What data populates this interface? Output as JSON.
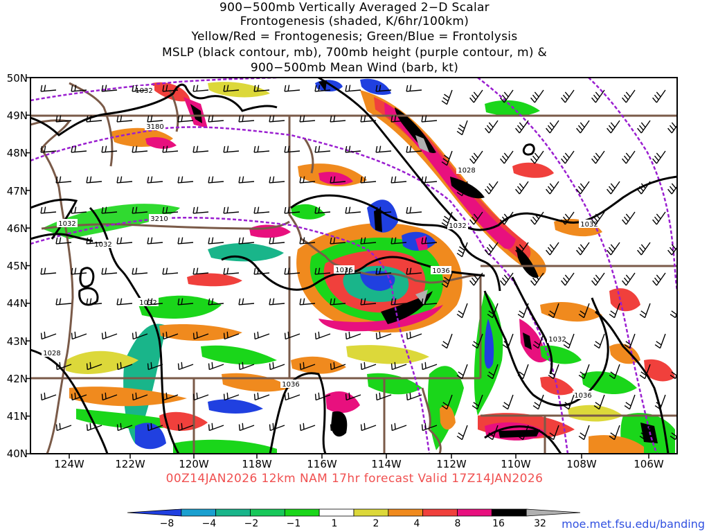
{
  "title": {
    "line1": "900−500mb Vertically Averaged 2−D Scalar",
    "line2": "Frontogenesis (shaded, K/6hr/100km)",
    "line3": "Yellow/Red = Frontogenesis;  Green/Blue = Frontolysis",
    "line4": "MSLP (black contour, mb), 700mb height (purple contour, m) &",
    "line5": "900−500mb Mean Wind (barb, kt)"
  },
  "lat_labels": [
    "50N",
    "49N",
    "48N",
    "47N",
    "46N",
    "45N",
    "44N",
    "43N",
    "42N",
    "41N",
    "40N"
  ],
  "lon_labels": [
    "124W",
    "122W",
    "120W",
    "118W",
    "116W",
    "114W",
    "112W",
    "110W",
    "108W",
    "106W"
  ],
  "valid_text": "00Z14JAN2026 12km NAM 17hr forecast Valid 17Z14JAN2026",
  "credit": "moe.met.fsu.edu/banding",
  "colorbar": {
    "labels": [
      "−8",
      "−4",
      "−2",
      "−1",
      "1",
      "2",
      "4",
      "8",
      "16",
      "32"
    ],
    "colors": [
      "#2040e0",
      "#1aa0d0",
      "#19b58a",
      "#18c85a",
      "#1ad61a",
      "#ffffff",
      "#dcd83a",
      "#f08a1e",
      "#f0403c",
      "#e8107e",
      "#000000",
      "#b0b0b0"
    ]
  },
  "contour_labels": {
    "mslp": [
      "1032",
      "1032",
      "1032",
      "1032",
      "1028",
      "1032",
      "1036",
      "1036",
      "1028",
      "1032",
      "1032",
      "1036",
      "1036",
      "1028"
    ],
    "height": [
      "3180",
      "3210"
    ]
  },
  "colors": {
    "mslp": "#000000",
    "height": "#9a1ed0",
    "border": "#7a5a48",
    "valid_text": "#f05050",
    "credit": "#3050e0"
  }
}
